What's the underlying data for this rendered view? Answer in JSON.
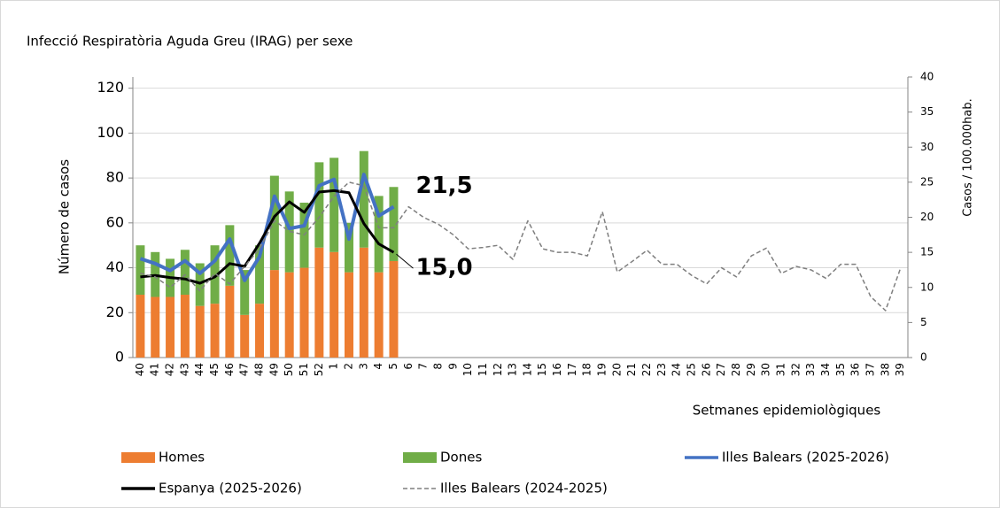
{
  "chart_data": {
    "type": "bar",
    "title": "Infecció Respiratòria Aguda Greu (IRAG) per sexe",
    "y_label": "Número de casos",
    "y2_label": "Casos / 100.000hab.",
    "x_label": "Setmanes epidemiològiques",
    "categories": [
      "40",
      "41",
      "42",
      "43",
      "44",
      "45",
      "46",
      "47",
      "48",
      "49",
      "50",
      "51",
      "52",
      "1",
      "2",
      "3",
      "4",
      "5",
      "6",
      "7",
      "8",
      "9",
      "10",
      "11",
      "12",
      "13",
      "14",
      "15",
      "16",
      "17",
      "18",
      "19",
      "20",
      "21",
      "22",
      "23",
      "24",
      "25",
      "26",
      "27",
      "28",
      "29",
      "30",
      "31",
      "32",
      "33",
      "34",
      "35",
      "36",
      "37",
      "38",
      "39"
    ],
    "ylim": [
      0,
      125
    ],
    "yticks": [
      0,
      20,
      40,
      60,
      80,
      100,
      120
    ],
    "y2lim": [
      0,
      40
    ],
    "y2ticks": [
      0,
      5,
      10,
      15,
      20,
      25,
      30,
      35,
      40
    ],
    "grid": true,
    "legend": "bottom",
    "series": [
      {
        "name": "Homes",
        "type": "bar",
        "color": "#ed7d31",
        "values": [
          28,
          27,
          27,
          28,
          23,
          24,
          32,
          19,
          24,
          39,
          38,
          40,
          49,
          47,
          38,
          49,
          38,
          43,
          null,
          null,
          null,
          null,
          null,
          null,
          null,
          null,
          null,
          null,
          null,
          null,
          null,
          null,
          null,
          null,
          null,
          null,
          null,
          null,
          null,
          null,
          null,
          null,
          null,
          null,
          null,
          null,
          null,
          null,
          null,
          null,
          null,
          null
        ]
      },
      {
        "name": "Dones",
        "type": "bar",
        "color": "#70ad47",
        "values": [
          22,
          20,
          17,
          20,
          19,
          26,
          27,
          20,
          26,
          42,
          36,
          29,
          38,
          42,
          22,
          43,
          34,
          33,
          null,
          null,
          null,
          null,
          null,
          null,
          null,
          null,
          null,
          null,
          null,
          null,
          null,
          null,
          null,
          null,
          null,
          null,
          null,
          null,
          null,
          null,
          null,
          null,
          null,
          null,
          null,
          null,
          null,
          null,
          null,
          null,
          null,
          null
        ]
      },
      {
        "name": "Illes Balears (2025-2026)",
        "type": "line",
        "axis": "y2",
        "color": "#4472c4",
        "values": [
          14.1,
          13.4,
          12.4,
          13.8,
          12.0,
          13.8,
          16.9,
          11.0,
          14.4,
          23.0,
          18.4,
          18.8,
          24.5,
          25.4,
          16.9,
          26.1,
          20.2,
          21.5,
          null,
          null,
          null,
          null,
          null,
          null,
          null,
          null,
          null,
          null,
          null,
          null,
          null,
          null,
          null,
          null,
          null,
          null,
          null,
          null,
          null,
          null,
          null,
          null,
          null,
          null,
          null,
          null,
          null,
          null,
          null,
          null,
          null,
          null
        ],
        "value_labels": [
          null,
          null,
          null,
          null,
          null,
          null,
          null,
          null,
          null,
          null,
          null,
          null,
          null,
          null,
          null,
          null,
          null,
          "21,5",
          null,
          null,
          null,
          null,
          null,
          null,
          null,
          null,
          null,
          null,
          null,
          null,
          null,
          null,
          null,
          null,
          null,
          null,
          null,
          null,
          null,
          null,
          null,
          null,
          null,
          null,
          null,
          null,
          null,
          null,
          null,
          null,
          null,
          null
        ]
      },
      {
        "name": "Espanya (2025-2026)",
        "type": "line",
        "axis": "y2",
        "color": "#000000",
        "values": [
          11.5,
          11.7,
          11.4,
          11.2,
          10.6,
          11.5,
          13.4,
          13.0,
          16.3,
          20.1,
          22.2,
          20.7,
          23.6,
          23.8,
          23.5,
          19.1,
          16.2,
          15.0,
          null,
          null,
          null,
          null,
          null,
          null,
          null,
          null,
          null,
          null,
          null,
          null,
          null,
          null,
          null,
          null,
          null,
          null,
          null,
          null,
          null,
          null,
          null,
          null,
          null,
          null,
          null,
          null,
          null,
          null,
          null,
          null,
          null,
          null
        ],
        "value_labels": [
          null,
          null,
          null,
          null,
          null,
          null,
          null,
          null,
          null,
          null,
          null,
          null,
          null,
          null,
          null,
          null,
          null,
          "15,0",
          null,
          null,
          null,
          null,
          null,
          null,
          null,
          null,
          null,
          null,
          null,
          null,
          null,
          null,
          null,
          null,
          null,
          null,
          null,
          null,
          null,
          null,
          null,
          null,
          null,
          null,
          null,
          null,
          null,
          null,
          null,
          null,
          null,
          null
        ]
      },
      {
        "name": "Illes Balears (2024-2025)",
        "type": "line",
        "axis": "y2",
        "dashed": true,
        "color": "#7f7f7f",
        "values": [
          12,
          11.5,
          10,
          11.8,
          9.5,
          12,
          10.5,
          13,
          15.5,
          19.5,
          18,
          17.5,
          20,
          23,
          25,
          24.5,
          18.5,
          18.5,
          21.5,
          20,
          19,
          17.5,
          15.5,
          15.7,
          16,
          14,
          19.5,
          15.5,
          15,
          15,
          14.5,
          20.8,
          12.2,
          13.7,
          15.3,
          13.3,
          13.3,
          11.7,
          10.5,
          12.8,
          11.5,
          14.5,
          15.6,
          12,
          13,
          12.5,
          11.3,
          13.3,
          13.3,
          8.7,
          6.7,
          12.7
        ]
      }
    ]
  }
}
